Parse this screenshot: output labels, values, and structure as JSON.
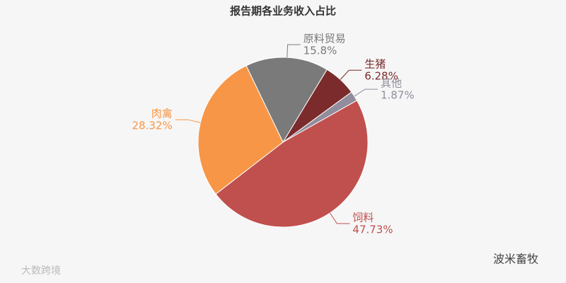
{
  "chart_data": {
    "type": "pie",
    "title": "报告期各业务收入占比",
    "categories": [
      "原料贸易",
      "生猪",
      "其他",
      "饲料",
      "肉禽"
    ],
    "values": [
      15.8,
      6.28,
      1.87,
      47.73,
      28.32
    ],
    "value_labels": [
      "15.8%",
      "6.28%",
      "1.87%",
      "47.73%",
      "28.32%"
    ],
    "colors": [
      "#7a7a7a",
      "#7b2b2b",
      "#918d9c",
      "#c0504d",
      "#f79646"
    ]
  },
  "watermarks": [
    "大数跨境",
    "波米畜牧"
  ]
}
